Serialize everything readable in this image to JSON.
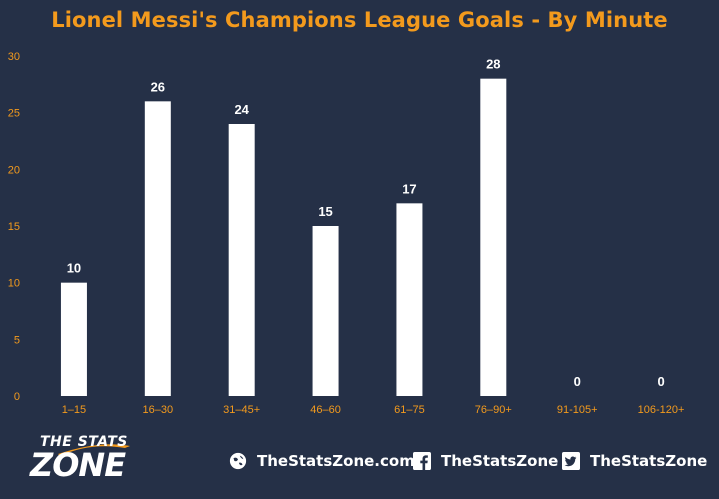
{
  "title": "Lionel Messi's Champions League Goals - By Minute",
  "chart_data": {
    "type": "bar",
    "categories": [
      "1–15",
      "16–30",
      "31–45+",
      "46–60",
      "61–75",
      "76–90+",
      "91-105+",
      "106-120+"
    ],
    "values": [
      10,
      26,
      24,
      15,
      17,
      28,
      0,
      0
    ],
    "title": "Lionel Messi's Champions League Goals - By Minute",
    "xlabel": "",
    "ylabel": "",
    "ylim": [
      0,
      30
    ],
    "yticks": [
      0,
      5,
      10,
      15,
      20,
      25,
      30
    ],
    "grid": false,
    "legend": "none",
    "colors": {
      "bar": "#ffffff",
      "axis_text": "#f39a1d",
      "data_label": "#ffffff",
      "background": "#253047"
    }
  },
  "footer": {
    "logo": {
      "line1": "THE STATS",
      "line2": "ZONE"
    },
    "website": {
      "icon": "globe-icon",
      "label": "TheStatsZone.com"
    },
    "facebook": {
      "icon": "facebook-icon",
      "label": "TheStatsZone"
    },
    "twitter": {
      "icon": "twitter-icon",
      "label": "TheStatsZone"
    }
  }
}
